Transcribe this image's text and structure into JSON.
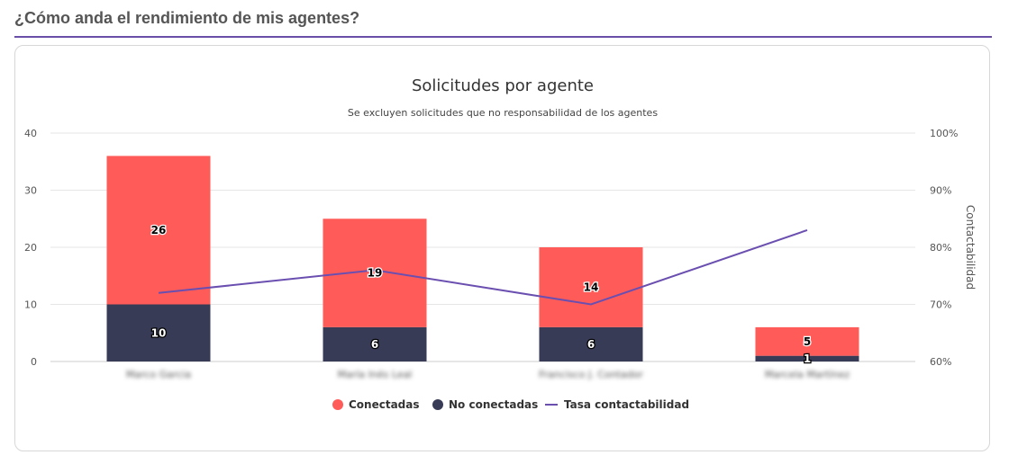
{
  "page": {
    "section_title": "¿Cómo anda el rendimiento de mis agentes?"
  },
  "chart_data": {
    "type": "bar",
    "stacked": true,
    "title": "Solicitudes por agente",
    "subtitle": "Se excluyen solicitudes que no responsabilidad de los agentes",
    "categories": [
      "Marco Garcia",
      "María Inés Leal",
      "Francisco J. Contador",
      "Marcela Martínez"
    ],
    "series": [
      {
        "name": "No conectadas",
        "type": "bar",
        "values": [
          10,
          6,
          6,
          1
        ],
        "color": "#383b55",
        "label_color": "#ffffff"
      },
      {
        "name": "Conectadas",
        "type": "bar",
        "values": [
          26,
          19,
          14,
          5
        ],
        "color": "#ff5c59",
        "label_color": "#000000"
      },
      {
        "name": "Tasa contactabilidad",
        "type": "line",
        "axis": "right",
        "values": [
          72,
          76,
          70,
          83
        ],
        "color": "#6a4fb0"
      }
    ],
    "legend": [
      "Conectadas",
      "No conectadas",
      "Tasa contactabilidad"
    ],
    "legend_position": "bottom",
    "ylim": [
      0,
      40
    ],
    "yticks": [
      "0",
      "10",
      "20",
      "30",
      "40"
    ],
    "y2lim": [
      60,
      100
    ],
    "y2ticks": [
      "60%",
      "70%",
      "80%",
      "90%",
      "100%"
    ],
    "y2label": "Contactabilidad",
    "grid": true
  }
}
